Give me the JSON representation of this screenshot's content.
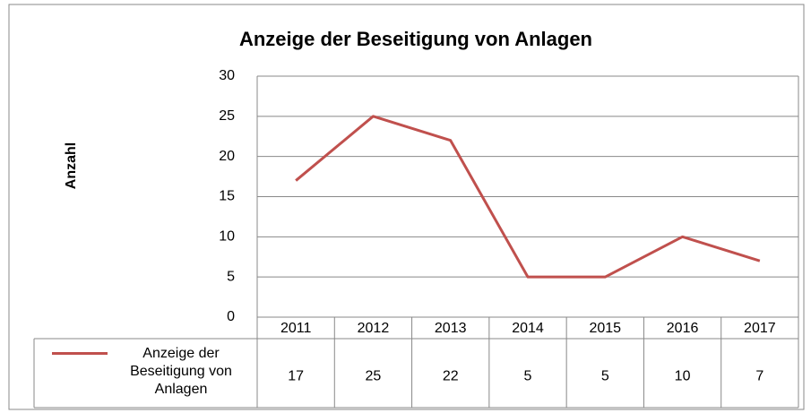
{
  "chart_data": {
    "type": "line",
    "title": "Anzeige der Beseitigung von Anlagen",
    "y_label": "Anzahl",
    "categories": [
      "2011",
      "2012",
      "2013",
      "2014",
      "2015",
      "2016",
      "2017"
    ],
    "series": [
      {
        "name": "Anzeige der Beseitigung von Anlagen",
        "color": "#c0504d",
        "values": [
          17,
          25,
          22,
          5,
          5,
          10,
          7
        ]
      }
    ],
    "ylim": [
      0,
      30
    ],
    "yticks": [
      0,
      5,
      10,
      15,
      20,
      25,
      30
    ],
    "grid": true,
    "data_table": true
  }
}
